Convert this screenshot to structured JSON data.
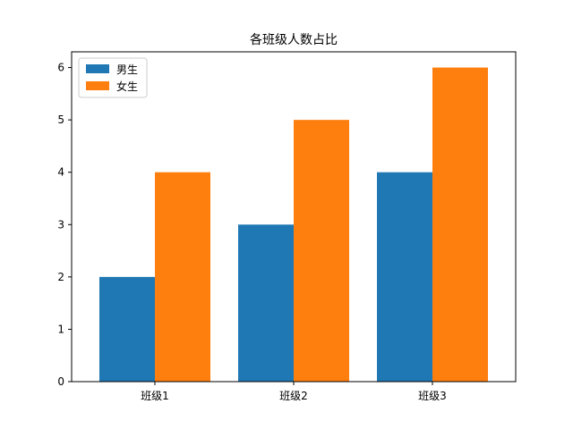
{
  "chart_data": {
    "type": "bar",
    "title": "各班级人数占比",
    "xlabel": "",
    "ylabel": "",
    "categories": [
      "班级1",
      "班级2",
      "班级3"
    ],
    "series": [
      {
        "name": "男生",
        "values": [
          2,
          3,
          4
        ],
        "color": "#1f77b4"
      },
      {
        "name": "女生",
        "values": [
          4,
          5,
          6
        ],
        "color": "#ff7f0e"
      }
    ],
    "ylim": [
      0,
      6.3
    ],
    "yticks": [
      0,
      1,
      2,
      3,
      4,
      5,
      6
    ],
    "grid": false,
    "legend_position": "top-left"
  }
}
